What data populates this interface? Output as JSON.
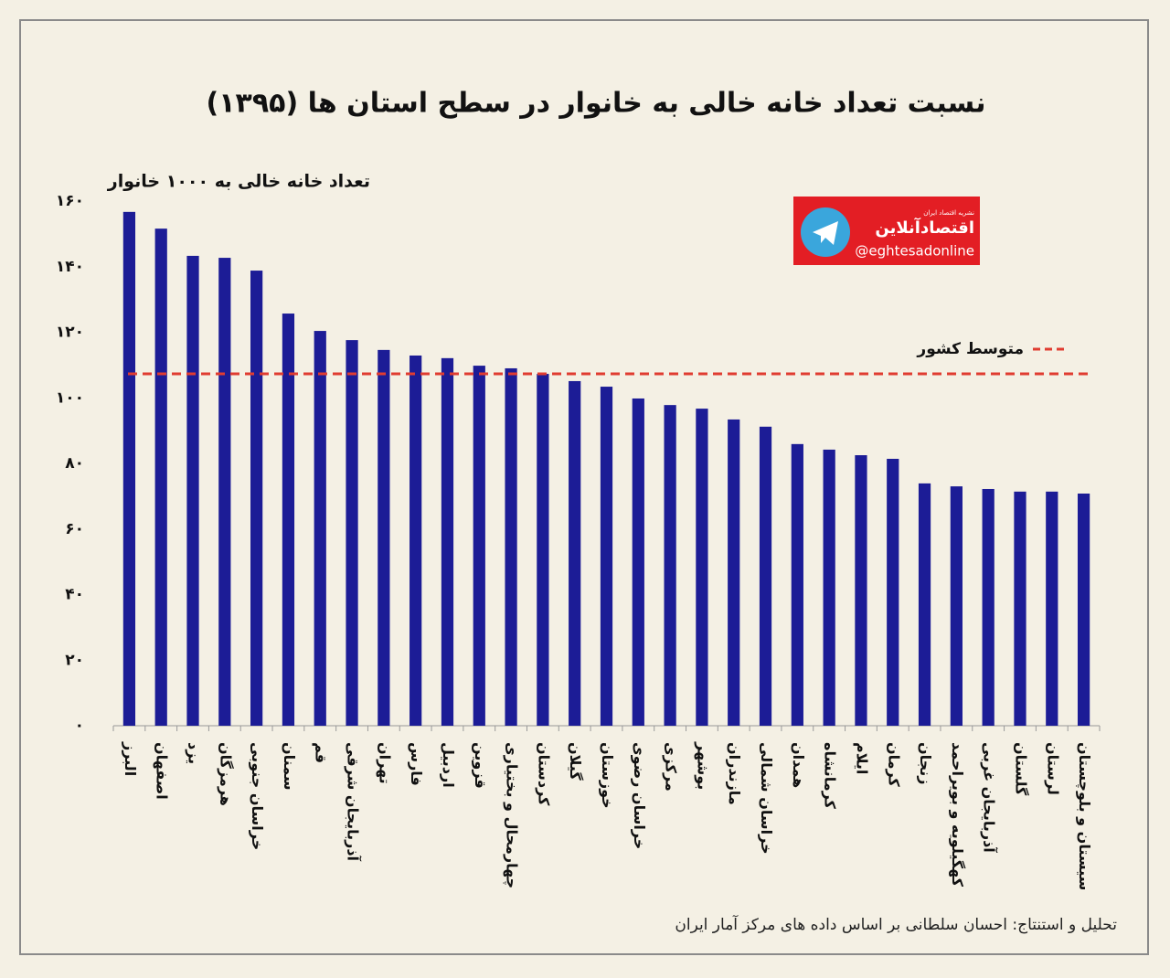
{
  "chart_data": {
    "type": "bar",
    "title": "نسبت تعداد خانه خالی به خانوار در سطح استان ها (۱۳۹۵)",
    "y_label": "تعداد خانه خالی به ۱۰۰۰ خانوار",
    "categories": [
      "البرز",
      "اصفهان",
      "یزد",
      "هرمزگان",
      "خراسان جنوبی",
      "سمنان",
      "قم",
      "آذربایجان شرقی",
      "تهران",
      "فارس",
      "اردبیل",
      "قزوین",
      "چهارمحال و بختیاری",
      "کردستان",
      "گیلان",
      "خوزستان",
      "خراسان رضوی",
      "مرکزی",
      "بوشهر",
      "مازندران",
      "خراسان شمالی",
      "همدان",
      "کرمانشاه",
      "ایلام",
      "کرمان",
      "زنجان",
      "کهگیلویه و بویراحمد",
      "آذربایجان غربی",
      "گلستان",
      "لرستان",
      "سیستان و بلوچستان"
    ],
    "values": [
      156.7,
      151.6,
      143.3,
      142.7,
      138.8,
      125.7,
      120.4,
      117.6,
      114.6,
      112.9,
      112.1,
      109.8,
      109.0,
      107.3,
      105.1,
      103.4,
      99.8,
      97.8,
      96.7,
      93.4,
      91.2,
      85.9,
      84.2,
      82.5,
      81.4,
      73.9,
      73.0,
      72.2,
      71.4,
      71.4,
      70.8
    ],
    "color": "#1c1c96",
    "ylim": [
      0,
      160
    ],
    "yticks": [
      {
        "value": 0,
        "label": "۰"
      },
      {
        "value": 20,
        "label": "۲۰"
      },
      {
        "value": 40,
        "label": "۴۰"
      },
      {
        "value": 60,
        "label": "۶۰"
      },
      {
        "value": 80,
        "label": "۸۰"
      },
      {
        "value": 100,
        "label": "۱۰۰"
      },
      {
        "value": 120,
        "label": "۱۲۰"
      },
      {
        "value": 140,
        "label": "۱۴۰"
      },
      {
        "value": 160,
        "label": "۱۶۰"
      }
    ],
    "grid": false,
    "reference_line": {
      "value": 107.3,
      "label": "متوسط کشور",
      "color": "#e03c31"
    },
    "source": "تحلیل و استنتاج: احسان سلطانی بر اساس داده های مرکز آمار ایران",
    "logo": {
      "name": "اقتصادآنلاین",
      "subtitle": "نشریه اقتصاد ایران",
      "handle": "@eghtesadonline"
    }
  }
}
